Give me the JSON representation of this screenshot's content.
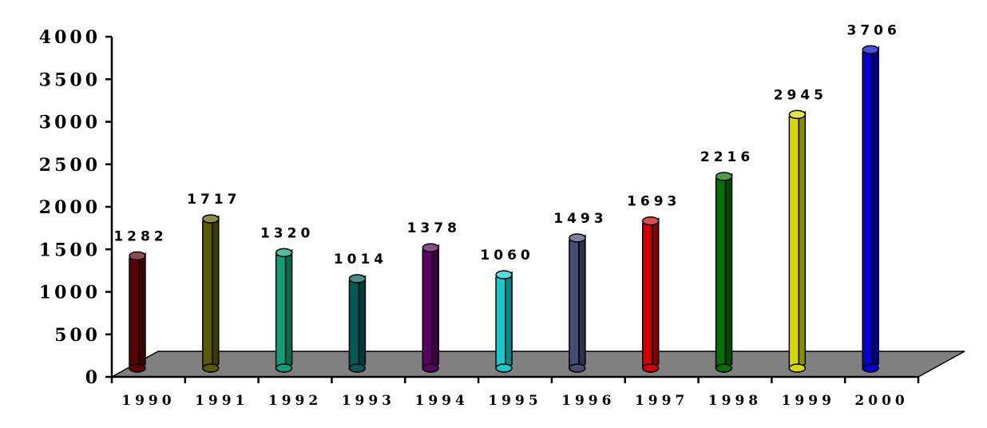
{
  "chart_data": {
    "type": "bar",
    "title": "",
    "xlabel": "",
    "ylabel": "",
    "categories": [
      "1990",
      "1991",
      "1992",
      "1993",
      "1994",
      "1995",
      "1996",
      "1997",
      "1998",
      "1999",
      "2000"
    ],
    "values": [
      1282,
      1717,
      1320,
      1014,
      1378,
      1060,
      1493,
      1693,
      2216,
      2945,
      3706
    ],
    "value_labels": [
      "1282",
      "1717",
      "1320",
      "1014",
      "1378",
      "1060",
      "1493",
      "1693",
      "2216",
      "2945",
      "3706"
    ],
    "ylim": [
      0,
      4000
    ],
    "yticks": [
      0,
      500,
      1000,
      1500,
      2000,
      2500,
      3000,
      3500,
      4000
    ],
    "ytick_labels": [
      "0",
      "500",
      "1000",
      "1500",
      "2000",
      "2500",
      "3000",
      "3500",
      "4000"
    ],
    "colors": [
      "#5a0000",
      "#5a5a00",
      "#0f9e78",
      "#005a5a",
      "#5a0060",
      "#17c9c9",
      "#474b78",
      "#d10000",
      "#007000",
      "#d8d800",
      "#0000d0"
    ],
    "floor_color": "#808080",
    "grid": false,
    "legend": "none",
    "style": "3d-cylinder"
  }
}
